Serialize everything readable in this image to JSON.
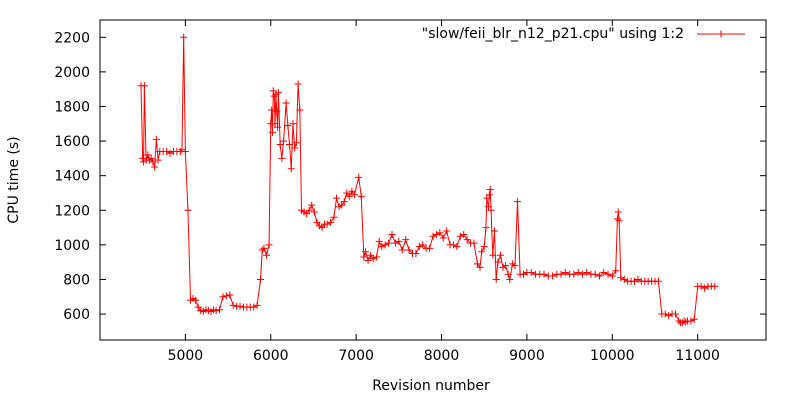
{
  "chart_data": {
    "type": "line",
    "title": "",
    "xlabel": "Revision number",
    "ylabel": "CPU time (s)",
    "xlim": [
      4000,
      11800
    ],
    "ylim": [
      450,
      2300
    ],
    "xticks": [
      5000,
      6000,
      7000,
      8000,
      9000,
      10000,
      11000
    ],
    "yticks": [
      600,
      800,
      1000,
      1200,
      1400,
      1600,
      1800,
      2000,
      2200
    ],
    "grid": false,
    "legend_position": "top-right",
    "series": [
      {
        "name": "\"slow/feii_blr_n12_p21.cpu\" using 1:2",
        "color": "#ff0000",
        "marker": "plus",
        "points": [
          [
            4480,
            1920
          ],
          [
            4500,
            1500
          ],
          [
            4510,
            1480
          ],
          [
            4520,
            1920
          ],
          [
            4540,
            1490
          ],
          [
            4560,
            1520
          ],
          [
            4580,
            1490
          ],
          [
            4600,
            1500
          ],
          [
            4620,
            1480
          ],
          [
            4640,
            1450
          ],
          [
            4660,
            1610
          ],
          [
            4680,
            1490
          ],
          [
            4700,
            1540
          ],
          [
            4740,
            1540
          ],
          [
            4780,
            1540
          ],
          [
            4820,
            1530
          ],
          [
            4860,
            1540
          ],
          [
            4900,
            1540
          ],
          [
            4940,
            1540
          ],
          [
            4960,
            1550
          ],
          [
            4980,
            2200
          ],
          [
            5000,
            1540
          ],
          [
            5030,
            1200
          ],
          [
            5060,
            680
          ],
          [
            5090,
            690
          ],
          [
            5120,
            680
          ],
          [
            5150,
            640
          ],
          [
            5180,
            620
          ],
          [
            5210,
            615
          ],
          [
            5240,
            625
          ],
          [
            5270,
            620
          ],
          [
            5300,
            615
          ],
          [
            5330,
            625
          ],
          [
            5360,
            620
          ],
          [
            5400,
            625
          ],
          [
            5440,
            700
          ],
          [
            5480,
            705
          ],
          [
            5520,
            710
          ],
          [
            5560,
            650
          ],
          [
            5600,
            645
          ],
          [
            5640,
            645
          ],
          [
            5680,
            640
          ],
          [
            5720,
            640
          ],
          [
            5760,
            640
          ],
          [
            5800,
            640
          ],
          [
            5840,
            650
          ],
          [
            5880,
            800
          ],
          [
            5900,
            970
          ],
          [
            5920,
            980
          ],
          [
            5950,
            940
          ],
          [
            5980,
            1000
          ],
          [
            6000,
            1700
          ],
          [
            6010,
            1780
          ],
          [
            6020,
            1650
          ],
          [
            6030,
            1890
          ],
          [
            6040,
            1860
          ],
          [
            6050,
            1700
          ],
          [
            6060,
            1870
          ],
          [
            6070,
            1770
          ],
          [
            6080,
            1680
          ],
          [
            6090,
            1880
          ],
          [
            6110,
            1580
          ],
          [
            6130,
            1500
          ],
          [
            6150,
            1600
          ],
          [
            6180,
            1820
          ],
          [
            6200,
            1690
          ],
          [
            6220,
            1580
          ],
          [
            6240,
            1440
          ],
          [
            6260,
            1700
          ],
          [
            6280,
            1560
          ],
          [
            6300,
            1590
          ],
          [
            6320,
            1930
          ],
          [
            6340,
            1780
          ],
          [
            6360,
            1200
          ],
          [
            6390,
            1190
          ],
          [
            6420,
            1180
          ],
          [
            6450,
            1200
          ],
          [
            6480,
            1230
          ],
          [
            6510,
            1190
          ],
          [
            6540,
            1130
          ],
          [
            6570,
            1110
          ],
          [
            6600,
            1100
          ],
          [
            6630,
            1120
          ],
          [
            6660,
            1120
          ],
          [
            6700,
            1130
          ],
          [
            6740,
            1160
          ],
          [
            6770,
            1270
          ],
          [
            6800,
            1220
          ],
          [
            6830,
            1230
          ],
          [
            6860,
            1250
          ],
          [
            6890,
            1300
          ],
          [
            6920,
            1280
          ],
          [
            6950,
            1310
          ],
          [
            6980,
            1290
          ],
          [
            7030,
            1390
          ],
          [
            7060,
            1280
          ],
          [
            7090,
            930
          ],
          [
            7110,
            960
          ],
          [
            7140,
            910
          ],
          [
            7170,
            940
          ],
          [
            7200,
            920
          ],
          [
            7240,
            930
          ],
          [
            7270,
            1020
          ],
          [
            7300,
            990
          ],
          [
            7340,
            1000
          ],
          [
            7380,
            1010
          ],
          [
            7420,
            1060
          ],
          [
            7460,
            1010
          ],
          [
            7500,
            1020
          ],
          [
            7540,
            970
          ],
          [
            7580,
            1030
          ],
          [
            7620,
            970
          ],
          [
            7660,
            950
          ],
          [
            7700,
            950
          ],
          [
            7740,
            990
          ],
          [
            7780,
            1000
          ],
          [
            7820,
            980
          ],
          [
            7860,
            980
          ],
          [
            7900,
            1050
          ],
          [
            7940,
            1060
          ],
          [
            7980,
            1070
          ],
          [
            8020,
            1040
          ],
          [
            8060,
            1080
          ],
          [
            8100,
            1000
          ],
          [
            8140,
            1000
          ],
          [
            8180,
            990
          ],
          [
            8220,
            1050
          ],
          [
            8260,
            1060
          ],
          [
            8300,
            1030
          ],
          [
            8340,
            1010
          ],
          [
            8380,
            1010
          ],
          [
            8420,
            890
          ],
          [
            8450,
            870
          ],
          [
            8470,
            960
          ],
          [
            8500,
            990
          ],
          [
            8520,
            1100
          ],
          [
            8530,
            1270
          ],
          [
            8550,
            1220
          ],
          [
            8560,
            1290
          ],
          [
            8570,
            1320
          ],
          [
            8580,
            1200
          ],
          [
            8600,
            940
          ],
          [
            8620,
            1080
          ],
          [
            8640,
            800
          ],
          [
            8660,
            900
          ],
          [
            8690,
            940
          ],
          [
            8720,
            870
          ],
          [
            8750,
            880
          ],
          [
            8780,
            830
          ],
          [
            8800,
            800
          ],
          [
            8830,
            890
          ],
          [
            8860,
            880
          ],
          [
            8890,
            1250
          ],
          [
            8920,
            830
          ],
          [
            8960,
            830
          ],
          [
            9000,
            840
          ],
          [
            9050,
            840
          ],
          [
            9100,
            830
          ],
          [
            9150,
            830
          ],
          [
            9200,
            830
          ],
          [
            9250,
            820
          ],
          [
            9300,
            820
          ],
          [
            9350,
            830
          ],
          [
            9400,
            830
          ],
          [
            9450,
            840
          ],
          [
            9500,
            830
          ],
          [
            9550,
            830
          ],
          [
            9600,
            840
          ],
          [
            9650,
            830
          ],
          [
            9700,
            840
          ],
          [
            9750,
            830
          ],
          [
            9800,
            830
          ],
          [
            9850,
            820
          ],
          [
            9900,
            840
          ],
          [
            9950,
            830
          ],
          [
            10000,
            820
          ],
          [
            10040,
            850
          ],
          [
            10060,
            1150
          ],
          [
            10070,
            1190
          ],
          [
            10080,
            1140
          ],
          [
            10100,
            810
          ],
          [
            10140,
            800
          ],
          [
            10180,
            790
          ],
          [
            10220,
            790
          ],
          [
            10260,
            790
          ],
          [
            10300,
            800
          ],
          [
            10340,
            790
          ],
          [
            10380,
            790
          ],
          [
            10420,
            790
          ],
          [
            10460,
            790
          ],
          [
            10500,
            790
          ],
          [
            10540,
            790
          ],
          [
            10580,
            600
          ],
          [
            10620,
            600
          ],
          [
            10660,
            590
          ],
          [
            10700,
            600
          ],
          [
            10740,
            600
          ],
          [
            10780,
            560
          ],
          [
            10800,
            550
          ],
          [
            10820,
            550
          ],
          [
            10840,
            560
          ],
          [
            10860,
            555
          ],
          [
            10880,
            560
          ],
          [
            10920,
            560
          ],
          [
            10960,
            570
          ],
          [
            11000,
            760
          ],
          [
            11040,
            760
          ],
          [
            11080,
            750
          ],
          [
            11120,
            760
          ],
          [
            11160,
            760
          ],
          [
            11200,
            760
          ]
        ]
      }
    ]
  }
}
